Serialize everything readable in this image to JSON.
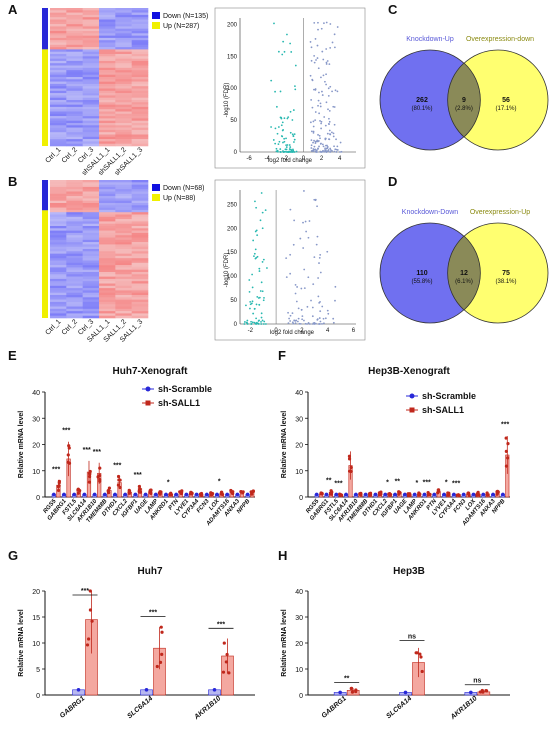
{
  "panels": {
    "A": {
      "label": "A",
      "heatmap": {
        "legend": [
          {
            "text": "Down (N=135)",
            "color": "#1010e0"
          },
          {
            "text": "Up (N=287)",
            "color": "#f0f000"
          }
        ],
        "columns": [
          "Ctrl_1",
          "Ctrl_2",
          "Ctrl_3",
          "shSALL1_1",
          "shSALL1_2",
          "shSALL1_3"
        ]
      },
      "volcano": {
        "ylabel": "-log10 (FDR)",
        "xlabel": "log2 fold change",
        "yticks": [
          "0",
          "50",
          "100",
          "150",
          "200"
        ],
        "xticks": [
          "-6",
          "-4",
          "-2",
          "0",
          "2",
          "4"
        ]
      }
    },
    "B": {
      "label": "B",
      "heatmap": {
        "legend": [
          {
            "text": "Down (N=68)",
            "color": "#1010e0"
          },
          {
            "text": "Up (N=88)",
            "color": "#f0f000"
          }
        ],
        "columns": [
          "Ctrl_1",
          "Ctrl_2",
          "Ctrl_3",
          "SALL1_1",
          "SALL1_2",
          "SALL1_3"
        ]
      },
      "volcano": {
        "ylabel": "-log10 (FDR)",
        "xlabel": "log2 fold change",
        "yticks": [
          "0",
          "50",
          "100",
          "150",
          "200",
          "250"
        ],
        "xticks": [
          "-2",
          "0",
          "2",
          "4",
          "6"
        ]
      }
    },
    "C": {
      "label": "C",
      "venn": {
        "left_title": "Knockdown-Up",
        "right_title": "Overexpression-down",
        "left": {
          "count": "262",
          "pct": "(80.1%)"
        },
        "mid": {
          "count": "9",
          "pct": "(2.8%)"
        },
        "right": {
          "count": "56",
          "pct": "(17.1%)"
        }
      }
    },
    "D": {
      "label": "D",
      "venn": {
        "left_title": "Knockdown-Down",
        "right_title": "Overexpression-Up",
        "left": {
          "count": "110",
          "pct": "(55.8%)"
        },
        "mid": {
          "count": "12",
          "pct": "(6.1%)"
        },
        "right": {
          "count": "75",
          "pct": "(38.1%)"
        }
      }
    }
  },
  "colors": {
    "blue_series": "#2828d8",
    "red_series": "#c0281c",
    "venn_left": "#7070f0",
    "venn_right": "#ffff70",
    "venn_mid": "#8a8a58",
    "title_left": "#5858d8",
    "title_right": "#8a8a10"
  },
  "chart_data": [
    {
      "id": "E",
      "label": "E",
      "type": "bar",
      "title": "Huh7-Xenograft",
      "ylabel": "Relative mRNA level",
      "ylim": [
        0,
        40
      ],
      "yticks": [
        "0",
        "10",
        "20",
        "30",
        "40"
      ],
      "categories": [
        "RGS5",
        "GABRG1",
        "FSTL5",
        "SLC6A14",
        "AKR1B10",
        "TMEM88B",
        "DTHD1",
        "CXCL2",
        "IGFBP1",
        "UAGE",
        "LAMP",
        "ANKRD1",
        "PTN",
        "LYVE1",
        "CYP3A4",
        "FCN3",
        "LOX",
        "ADAMTS16",
        "ANXA3",
        "NPPB"
      ],
      "series": [
        {
          "name": "sh-Scramble",
          "values": [
            1,
            1,
            1,
            1,
            1,
            1,
            1,
            1,
            1,
            1,
            1,
            1,
            1,
            1,
            1,
            1,
            1,
            1,
            1,
            1
          ]
        },
        {
          "name": "sh-SALL1",
          "values": [
            4.5,
            14.5,
            2.2,
            9.5,
            9.0,
            2.5,
            5.5,
            1.8,
            3.2,
            2.0,
            1.5,
            1.2,
            1.8,
            1.5,
            1.0,
            1.2,
            1.5,
            1.8,
            1.5,
            1.6
          ]
        }
      ],
      "significance": [
        "***",
        "***",
        "",
        "***",
        "***",
        "",
        "***",
        "",
        "***",
        "",
        "",
        "*",
        "",
        "",
        "",
        "",
        "*",
        "",
        "",
        ""
      ]
    },
    {
      "id": "F",
      "label": "F",
      "type": "bar",
      "title": "Hep3B-Xenograft",
      "ylabel": "Relative mRNA level",
      "ylim": [
        0,
        40
      ],
      "yticks": [
        "0",
        "10",
        "20",
        "30",
        "40"
      ],
      "categories": [
        "RGS5",
        "GABRG1",
        "FSTL5",
        "SLC6A14",
        "AKR1B10",
        "TMEM88B",
        "DTHD1",
        "CXCL2",
        "IGFBP1",
        "UAGE",
        "LAMP",
        "ANKRD1",
        "PTN",
        "LYVE1",
        "CYP3A4",
        "FCN3",
        "LOX",
        "ADAMTS16",
        "ANXA3",
        "NPPB"
      ],
      "series": [
        {
          "name": "sh-Scramble",
          "values": [
            1,
            1,
            1,
            1,
            1,
            1,
            1,
            1,
            1,
            1,
            1,
            1,
            1,
            1,
            1,
            1,
            1,
            1,
            1,
            1
          ]
        },
        {
          "name": "sh-SALL1",
          "values": [
            1.2,
            1.8,
            1.0,
            12.0,
            1.2,
            1.0,
            1.3,
            1.2,
            1.5,
            1.0,
            1.1,
            1.2,
            2.0,
            1.2,
            1.0,
            1.1,
            1.3,
            1.2,
            1.5,
            16.0
          ]
        }
      ],
      "significance": [
        "",
        "**",
        "***",
        "",
        "",
        "",
        "",
        "*",
        "**",
        "",
        "*",
        "***",
        "",
        "*",
        "***",
        "",
        "",
        "",
        "",
        "***"
      ]
    },
    {
      "id": "G",
      "label": "G",
      "type": "bar",
      "title": "Huh7",
      "ylabel": "Relative mRNA level",
      "ylim": [
        0,
        20
      ],
      "yticks": [
        "0",
        "5",
        "10",
        "15",
        "20"
      ],
      "categories": [
        "GABRG1",
        "SLC6A14",
        "AKR1B10"
      ],
      "series": [
        {
          "name": "sh-Scramble",
          "values": [
            1,
            1,
            1
          ]
        },
        {
          "name": "sh-SALL1",
          "values": [
            14.5,
            9.0,
            7.5
          ]
        }
      ],
      "significance": [
        "***",
        "***",
        "***"
      ]
    },
    {
      "id": "H",
      "label": "H",
      "type": "bar",
      "title": "Hep3B",
      "ylabel": "Relative mRNA level",
      "ylim": [
        0,
        40
      ],
      "yticks": [
        "0",
        "10",
        "20",
        "30",
        "40"
      ],
      "categories": [
        "GABRG1",
        "SLC6A14",
        "AKR1B10"
      ],
      "series": [
        {
          "name": "sh-Scramble",
          "values": [
            1,
            1,
            1
          ]
        },
        {
          "name": "sh-SALL1",
          "values": [
            1.8,
            12.5,
            1.2
          ]
        }
      ],
      "significance": [
        "**",
        "ns",
        "ns"
      ]
    }
  ]
}
